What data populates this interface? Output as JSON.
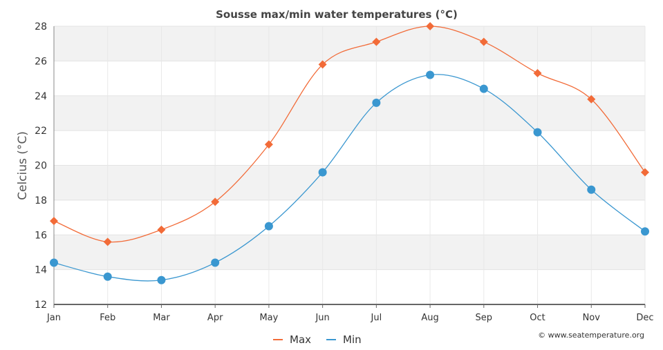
{
  "chart_data": {
    "type": "line",
    "title": "Sousse max/min water temperatures (°C)",
    "xlabel": "",
    "ylabel": "Celcius (°C)",
    "categories": [
      "Jan",
      "Feb",
      "Mar",
      "Apr",
      "May",
      "Jun",
      "Jul",
      "Aug",
      "Sep",
      "Oct",
      "Nov",
      "Dec"
    ],
    "ylim": [
      12,
      28
    ],
    "yticks": [
      12,
      14,
      16,
      18,
      20,
      22,
      24,
      26,
      28
    ],
    "series": [
      {
        "name": "Max",
        "color": "#f26b38",
        "marker": "diamond",
        "values": [
          16.8,
          15.6,
          16.3,
          17.9,
          21.2,
          25.8,
          27.1,
          28.0,
          27.1,
          25.3,
          23.8,
          19.6
        ]
      },
      {
        "name": "Min",
        "color": "#3a97d0",
        "marker": "circle",
        "values": [
          14.4,
          13.6,
          13.4,
          14.4,
          16.5,
          19.6,
          23.6,
          25.2,
          24.4,
          21.9,
          18.6,
          16.2
        ]
      }
    ],
    "grid": true,
    "band_color": "#f2f2f2",
    "legend_position": "bottom-center",
    "credit": "© www.seatemperature.org"
  }
}
